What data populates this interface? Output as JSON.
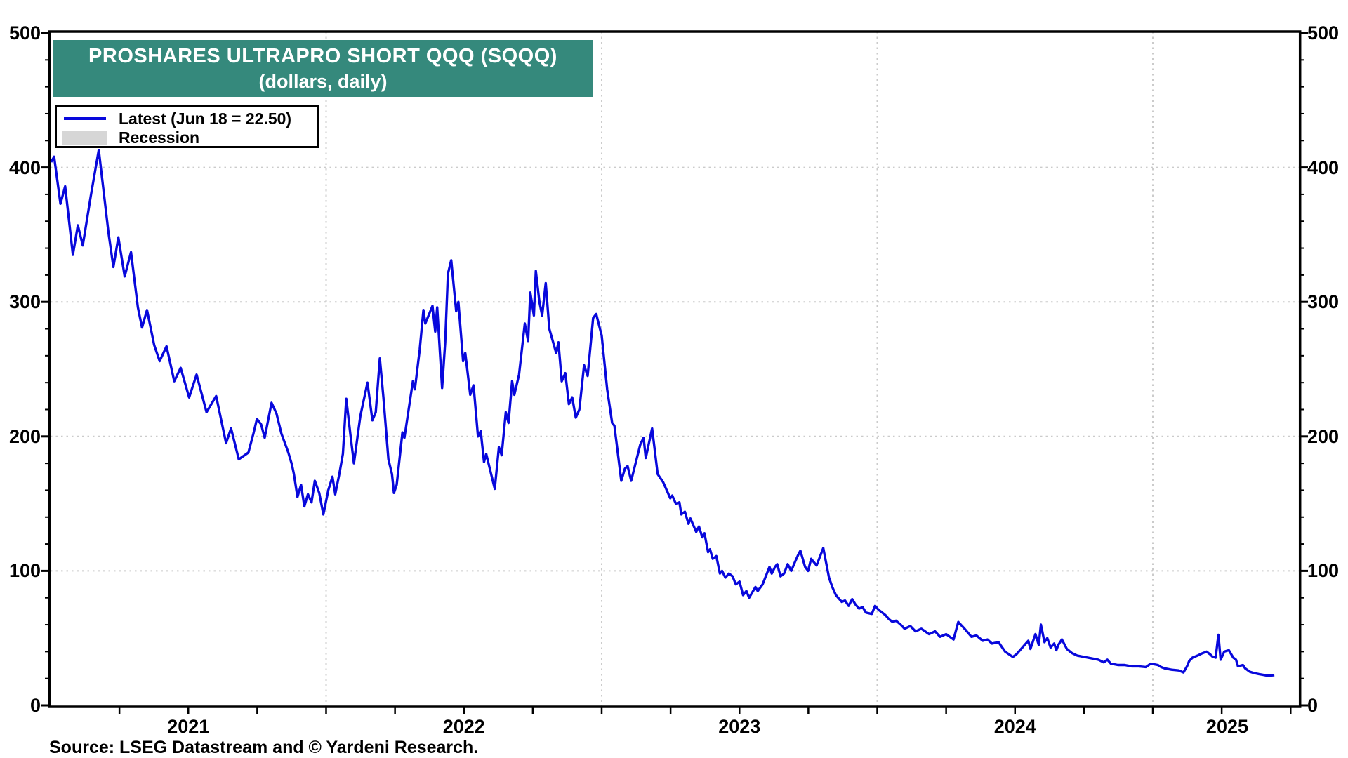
{
  "header": {
    "title_line1": "PROSHARES ULTRAPRO SHORT QQQ (SQQQ)",
    "title_line2": "(dollars, daily)",
    "banner_color": "#35897C"
  },
  "legend": {
    "latest_label": "Latest (Jun 18 = 22.50)",
    "recession_label": "Recession",
    "line_color": "#0808DC",
    "recession_color": "#D6D6D6",
    "position": "top-left"
  },
  "footer": {
    "source": "Source: LSEG Datastream and © Yardeni Research."
  },
  "axes": {
    "y_ticks": [
      500,
      400,
      300,
      200,
      100,
      0
    ],
    "y_minor_step": 20,
    "y_gridline_values": [
      100,
      200,
      300,
      400
    ],
    "x_year_labels": [
      {
        "label": "2021",
        "t": 2021.5
      },
      {
        "label": "2022",
        "t": 2022.5
      },
      {
        "label": "2023",
        "t": 2023.5
      },
      {
        "label": "2024",
        "t": 2024.5
      },
      {
        "label": "2025",
        "t": 2025.27
      }
    ],
    "x_gridline_years": [
      2022,
      2023,
      2024,
      2025
    ],
    "x_minor_step_years": 0.25,
    "grid_color": "#CBCBCB",
    "axis_color": "#000000"
  },
  "chart_data": {
    "type": "line",
    "title": "PROSHARES ULTRAPRO SHORT QQQ (SQQQ)",
    "subtitle": "(dollars, daily)",
    "xlabel": "",
    "ylabel": "dollars",
    "xlim": [
      2021.0,
      2025.53
    ],
    "ylim": [
      0,
      500
    ],
    "grid": "dotted",
    "legend_position": "top-left",
    "latest_point": {
      "date": "Jun 18",
      "value": 22.5
    },
    "series": [
      {
        "name": "Latest (Jun 18 = 22.50)",
        "color": "#0808DC",
        "points": [
          [
            2021.002,
            404
          ],
          [
            2021.013,
            408
          ],
          [
            2021.036,
            373
          ],
          [
            2021.053,
            386
          ],
          [
            2021.081,
            335
          ],
          [
            2021.099,
            357
          ],
          [
            2021.117,
            342
          ],
          [
            2021.147,
            380
          ],
          [
            2021.175,
            413
          ],
          [
            2021.21,
            352
          ],
          [
            2021.228,
            326
          ],
          [
            2021.246,
            348
          ],
          [
            2021.269,
            319
          ],
          [
            2021.292,
            337
          ],
          [
            2021.317,
            296
          ],
          [
            2021.332,
            281
          ],
          [
            2021.35,
            294
          ],
          [
            2021.376,
            268
          ],
          [
            2021.396,
            256
          ],
          [
            2021.421,
            267
          ],
          [
            2021.449,
            241
          ],
          [
            2021.472,
            251
          ],
          [
            2021.503,
            229
          ],
          [
            2021.53,
            246
          ],
          [
            2021.566,
            218
          ],
          [
            2021.601,
            230
          ],
          [
            2021.637,
            195
          ],
          [
            2021.655,
            206
          ],
          [
            2021.683,
            183
          ],
          [
            2021.718,
            188
          ],
          [
            2021.736,
            202
          ],
          [
            2021.749,
            213
          ],
          [
            2021.764,
            209
          ],
          [
            2021.777,
            199
          ],
          [
            2021.802,
            225
          ],
          [
            2021.82,
            217
          ],
          [
            2021.838,
            202
          ],
          [
            2021.863,
            188
          ],
          [
            2021.876,
            179
          ],
          [
            2021.883,
            172
          ],
          [
            2021.896,
            155
          ],
          [
            2021.909,
            164
          ],
          [
            2021.921,
            148
          ],
          [
            2021.934,
            157
          ],
          [
            2021.947,
            151
          ],
          [
            2021.959,
            167
          ],
          [
            2021.975,
            158
          ],
          [
            2021.99,
            142
          ],
          [
            2022.008,
            160
          ],
          [
            2022.023,
            170
          ],
          [
            2022.033,
            157
          ],
          [
            2022.048,
            172
          ],
          [
            2022.061,
            187
          ],
          [
            2022.073,
            228
          ],
          [
            2022.089,
            200
          ],
          [
            2022.101,
            180
          ],
          [
            2022.124,
            215
          ],
          [
            2022.15,
            240
          ],
          [
            2022.168,
            212
          ],
          [
            2022.18,
            218
          ],
          [
            2022.195,
            258
          ],
          [
            2022.208,
            229
          ],
          [
            2022.226,
            183
          ],
          [
            2022.239,
            172
          ],
          [
            2022.246,
            158
          ],
          [
            2022.256,
            164
          ],
          [
            2022.277,
            203
          ],
          [
            2022.284,
            199
          ],
          [
            2022.315,
            241
          ],
          [
            2022.322,
            235
          ],
          [
            2022.34,
            265
          ],
          [
            2022.353,
            294
          ],
          [
            2022.36,
            284
          ],
          [
            2022.386,
            297
          ],
          [
            2022.396,
            278
          ],
          [
            2022.403,
            296
          ],
          [
            2022.421,
            236
          ],
          [
            2022.432,
            270
          ],
          [
            2022.442,
            321
          ],
          [
            2022.454,
            331
          ],
          [
            2022.472,
            293
          ],
          [
            2022.48,
            300
          ],
          [
            2022.497,
            256
          ],
          [
            2022.505,
            262
          ],
          [
            2022.523,
            231
          ],
          [
            2022.535,
            238
          ],
          [
            2022.551,
            200
          ],
          [
            2022.561,
            204
          ],
          [
            2022.573,
            181
          ],
          [
            2022.581,
            187
          ],
          [
            2022.612,
            161
          ],
          [
            2022.627,
            192
          ],
          [
            2022.637,
            186
          ],
          [
            2022.652,
            218
          ],
          [
            2022.662,
            210
          ],
          [
            2022.675,
            241
          ],
          [
            2022.683,
            231
          ],
          [
            2022.7,
            246
          ],
          [
            2022.721,
            284
          ],
          [
            2022.733,
            271
          ],
          [
            2022.741,
            307
          ],
          [
            2022.754,
            290
          ],
          [
            2022.761,
            323
          ],
          [
            2022.774,
            300
          ],
          [
            2022.784,
            290
          ],
          [
            2022.797,
            314
          ],
          [
            2022.81,
            280
          ],
          [
            2022.835,
            262
          ],
          [
            2022.843,
            270
          ],
          [
            2022.855,
            241
          ],
          [
            2022.868,
            247
          ],
          [
            2022.881,
            224
          ],
          [
            2022.893,
            229
          ],
          [
            2022.906,
            214
          ],
          [
            2022.919,
            220
          ],
          [
            2022.936,
            253
          ],
          [
            2022.949,
            245
          ],
          [
            2022.969,
            288
          ],
          [
            2022.98,
            291
          ],
          [
            2023.0,
            275
          ],
          [
            2023.02,
            235
          ],
          [
            2023.038,
            210
          ],
          [
            2023.046,
            208
          ],
          [
            2023.071,
            167
          ],
          [
            2023.084,
            176
          ],
          [
            2023.094,
            178
          ],
          [
            2023.107,
            167
          ],
          [
            2023.14,
            194
          ],
          [
            2023.152,
            199
          ],
          [
            2023.16,
            184
          ],
          [
            2023.183,
            206
          ],
          [
            2023.203,
            172
          ],
          [
            2023.223,
            166
          ],
          [
            2023.249,
            154
          ],
          [
            2023.256,
            156
          ],
          [
            2023.269,
            150
          ],
          [
            2023.282,
            151
          ],
          [
            2023.289,
            142
          ],
          [
            2023.302,
            144
          ],
          [
            2023.315,
            135
          ],
          [
            2023.322,
            139
          ],
          [
            2023.343,
            129
          ],
          [
            2023.353,
            133
          ],
          [
            2023.365,
            125
          ],
          [
            2023.373,
            128
          ],
          [
            2023.386,
            114
          ],
          [
            2023.393,
            116
          ],
          [
            2023.403,
            109
          ],
          [
            2023.416,
            111
          ],
          [
            2023.429,
            98
          ],
          [
            2023.437,
            100
          ],
          [
            2023.449,
            95
          ],
          [
            2023.462,
            98
          ],
          [
            2023.475,
            96
          ],
          [
            2023.487,
            90
          ],
          [
            2023.5,
            92
          ],
          [
            2023.513,
            82
          ],
          [
            2023.525,
            85
          ],
          [
            2023.535,
            80
          ],
          [
            2023.558,
            88
          ],
          [
            2023.566,
            85
          ],
          [
            2023.584,
            90
          ],
          [
            2023.609,
            103
          ],
          [
            2023.617,
            98
          ],
          [
            2023.629,
            103
          ],
          [
            2023.637,
            105
          ],
          [
            2023.649,
            96
          ],
          [
            2023.662,
            98
          ],
          [
            2023.675,
            105
          ],
          [
            2023.688,
            100
          ],
          [
            2023.7,
            106
          ],
          [
            2023.713,
            112
          ],
          [
            2023.721,
            115
          ],
          [
            2023.738,
            103
          ],
          [
            2023.749,
            100
          ],
          [
            2023.76,
            109
          ],
          [
            2023.78,
            104
          ],
          [
            2023.804,
            117
          ],
          [
            2023.825,
            95
          ],
          [
            2023.837,
            88
          ],
          [
            2023.85,
            82
          ],
          [
            2023.858,
            80
          ],
          [
            2023.871,
            77
          ],
          [
            2023.883,
            78
          ],
          [
            2023.896,
            74
          ],
          [
            2023.909,
            79
          ],
          [
            2023.921,
            75
          ],
          [
            2023.934,
            72
          ],
          [
            2023.947,
            73
          ],
          [
            2023.959,
            69
          ],
          [
            2023.98,
            68
          ],
          [
            2023.992,
            74
          ],
          [
            2024.005,
            71
          ],
          [
            2024.018,
            69
          ],
          [
            2024.03,
            67
          ],
          [
            2024.043,
            64
          ],
          [
            2024.056,
            62
          ],
          [
            2024.068,
            63
          ],
          [
            2024.085,
            60
          ],
          [
            2024.099,
            57
          ],
          [
            2024.12,
            59
          ],
          [
            2024.139,
            55
          ],
          [
            2024.16,
            57
          ],
          [
            2024.188,
            53
          ],
          [
            2024.21,
            55
          ],
          [
            2024.228,
            51
          ],
          [
            2024.25,
            53
          ],
          [
            2024.277,
            49
          ],
          [
            2024.294,
            62
          ],
          [
            2024.317,
            57
          ],
          [
            2024.342,
            51
          ],
          [
            2024.36,
            52
          ],
          [
            2024.383,
            48
          ],
          [
            2024.4,
            49
          ],
          [
            2024.416,
            46
          ],
          [
            2024.44,
            47
          ],
          [
            2024.464,
            40
          ],
          [
            2024.492,
            36
          ],
          [
            2024.505,
            38
          ],
          [
            2024.535,
            45
          ],
          [
            2024.548,
            48
          ],
          [
            2024.556,
            42
          ],
          [
            2024.574,
            53
          ],
          [
            2024.586,
            45
          ],
          [
            2024.594,
            60
          ],
          [
            2024.607,
            47
          ],
          [
            2024.617,
            50
          ],
          [
            2024.629,
            43
          ],
          [
            2024.642,
            46
          ],
          [
            2024.65,
            41
          ],
          [
            2024.657,
            45
          ],
          [
            2024.67,
            49
          ],
          [
            2024.688,
            42
          ],
          [
            2024.706,
            39
          ],
          [
            2024.726,
            37
          ],
          [
            2024.751,
            36
          ],
          [
            2024.777,
            35
          ],
          [
            2024.802,
            34
          ],
          [
            2024.822,
            32
          ],
          [
            2024.835,
            34
          ],
          [
            2024.848,
            31
          ],
          [
            2024.873,
            30
          ],
          [
            2024.898,
            30
          ],
          [
            2024.924,
            29
          ],
          [
            2024.949,
            29
          ],
          [
            2024.975,
            28.5
          ],
          [
            2024.992,
            31
          ],
          [
            2025.018,
            30
          ],
          [
            2025.03,
            28.5
          ],
          [
            2025.043,
            27.5
          ],
          [
            2025.068,
            26.5
          ],
          [
            2025.094,
            26
          ],
          [
            2025.111,
            24.5
          ],
          [
            2025.124,
            29
          ],
          [
            2025.132,
            33
          ],
          [
            2025.144,
            35.5
          ],
          [
            2025.162,
            37
          ],
          [
            2025.177,
            38.5
          ],
          [
            2025.195,
            40
          ],
          [
            2025.208,
            38
          ],
          [
            2025.215,
            36.5
          ],
          [
            2025.228,
            35.5
          ],
          [
            2025.238,
            52.5
          ],
          [
            2025.246,
            34
          ],
          [
            2025.259,
            40
          ],
          [
            2025.276,
            41
          ],
          [
            2025.292,
            35.5
          ],
          [
            2025.302,
            34
          ],
          [
            2025.309,
            29
          ],
          [
            2025.327,
            30
          ],
          [
            2025.335,
            27.5
          ],
          [
            2025.352,
            25
          ],
          [
            2025.368,
            24
          ],
          [
            2025.385,
            23.3
          ],
          [
            2025.398,
            22.8
          ],
          [
            2025.411,
            22.3
          ],
          [
            2025.431,
            22.3
          ],
          [
            2025.441,
            22.5
          ]
        ]
      }
    ]
  }
}
